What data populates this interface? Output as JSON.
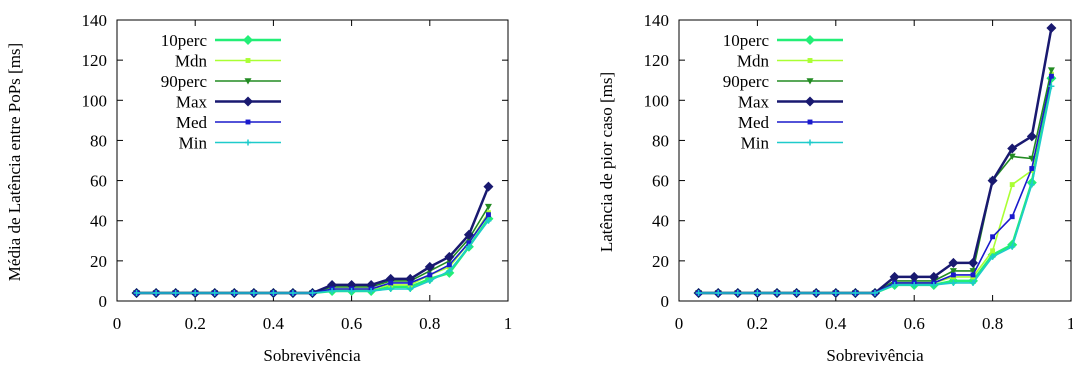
{
  "chart_data": [
    {
      "type": "line",
      "title": "",
      "xlabel": "Sobrevivência",
      "ylabel": "Média de Latência entre PoPs [ms]",
      "xlim": [
        0,
        1
      ],
      "ylim": [
        0,
        140
      ],
      "xticks": [
        "0",
        "0.2",
        "0.4",
        "0.6",
        "0.8",
        "1"
      ],
      "yticks": [
        "0",
        "20",
        "40",
        "60",
        "80",
        "100",
        "120",
        "140"
      ],
      "legend_position": "top-left",
      "grid": false,
      "x": [
        0.05,
        0.1,
        0.15,
        0.2,
        0.25,
        0.3,
        0.35,
        0.4,
        0.45,
        0.5,
        0.55,
        0.6,
        0.65,
        0.7,
        0.75,
        0.8,
        0.85,
        0.9,
        0.95
      ],
      "series": [
        {
          "name": "10perc",
          "color": "#22ee77",
          "marker": "diamond",
          "values": [
            4,
            4,
            4,
            4,
            4,
            4,
            4,
            4,
            4,
            4,
            5,
            5,
            5,
            7,
            7,
            11,
            14,
            27,
            41
          ]
        },
        {
          "name": "Mdn",
          "color": "#aaff33",
          "marker": "square",
          "values": [
            4,
            4,
            4,
            4,
            4,
            4,
            4,
            4,
            4,
            4,
            6,
            6,
            6,
            8,
            8,
            13,
            17,
            29,
            44
          ]
        },
        {
          "name": "90perc",
          "color": "#228b22",
          "marker": "triangle-down",
          "values": [
            4,
            4,
            4,
            4,
            4,
            4,
            4,
            4,
            4,
            4,
            7,
            7,
            7,
            10,
            10,
            15,
            20,
            31,
            47
          ]
        },
        {
          "name": "Max",
          "color": "#191970",
          "marker": "diamond",
          "values": [
            4,
            4,
            4,
            4,
            4,
            4,
            4,
            4,
            4,
            4,
            8,
            8,
            8,
            11,
            11,
            17,
            22,
            33,
            57
          ]
        },
        {
          "name": "Med",
          "color": "#1a1acc",
          "marker": "square",
          "values": [
            4,
            4,
            4,
            4,
            4,
            4,
            4,
            4,
            4,
            4,
            6,
            6,
            6,
            9,
            9,
            13,
            18,
            29,
            43
          ]
        },
        {
          "name": "Min",
          "color": "#1ecbcb",
          "marker": "plus",
          "values": [
            4,
            4,
            4,
            4,
            4,
            4,
            4,
            4,
            4,
            4,
            5,
            5,
            5,
            6,
            6,
            10,
            15,
            27,
            40
          ]
        }
      ]
    },
    {
      "type": "line",
      "title": "",
      "xlabel": "Sobrevivência",
      "ylabel": "Latência de pior caso [ms]",
      "xlim": [
        0,
        1
      ],
      "ylim": [
        0,
        140
      ],
      "xticks": [
        "0",
        "0.2",
        "0.4",
        "0.6",
        "0.8",
        "1"
      ],
      "yticks": [
        "0",
        "20",
        "40",
        "60",
        "80",
        "100",
        "120",
        "140"
      ],
      "legend_position": "top-left",
      "grid": false,
      "x": [
        0.05,
        0.1,
        0.15,
        0.2,
        0.25,
        0.3,
        0.35,
        0.4,
        0.45,
        0.5,
        0.55,
        0.6,
        0.65,
        0.7,
        0.75,
        0.8,
        0.85,
        0.9,
        0.95
      ],
      "series": [
        {
          "name": "10perc",
          "color": "#22ee77",
          "marker": "diamond",
          "values": [
            4,
            4,
            4,
            4,
            4,
            4,
            4,
            4,
            4,
            4,
            8,
            8,
            8,
            10,
            10,
            23,
            28,
            59,
            111
          ]
        },
        {
          "name": "Mdn",
          "color": "#aaff33",
          "marker": "square",
          "values": [
            4,
            4,
            4,
            4,
            4,
            4,
            4,
            4,
            4,
            4,
            9,
            9,
            9,
            12,
            12,
            25,
            58,
            65,
            113
          ]
        },
        {
          "name": "90perc",
          "color": "#228b22",
          "marker": "triangle-down",
          "values": [
            4,
            4,
            4,
            4,
            4,
            4,
            4,
            4,
            4,
            4,
            10,
            10,
            10,
            15,
            15,
            60,
            72,
            71,
            115
          ]
        },
        {
          "name": "Max",
          "color": "#191970",
          "marker": "diamond",
          "values": [
            4,
            4,
            4,
            4,
            4,
            4,
            4,
            4,
            4,
            4,
            12,
            12,
            12,
            19,
            19,
            60,
            76,
            82,
            136
          ]
        },
        {
          "name": "Med",
          "color": "#1a1acc",
          "marker": "square",
          "values": [
            4,
            4,
            4,
            4,
            4,
            4,
            4,
            4,
            4,
            4,
            9,
            9,
            9,
            13,
            13,
            32,
            42,
            66,
            112
          ]
        },
        {
          "name": "Min",
          "color": "#1ecbcb",
          "marker": "plus",
          "values": [
            4,
            4,
            4,
            4,
            4,
            4,
            4,
            4,
            4,
            4,
            8,
            8,
            8,
            9,
            9,
            22,
            27,
            58,
            107
          ]
        }
      ]
    }
  ]
}
